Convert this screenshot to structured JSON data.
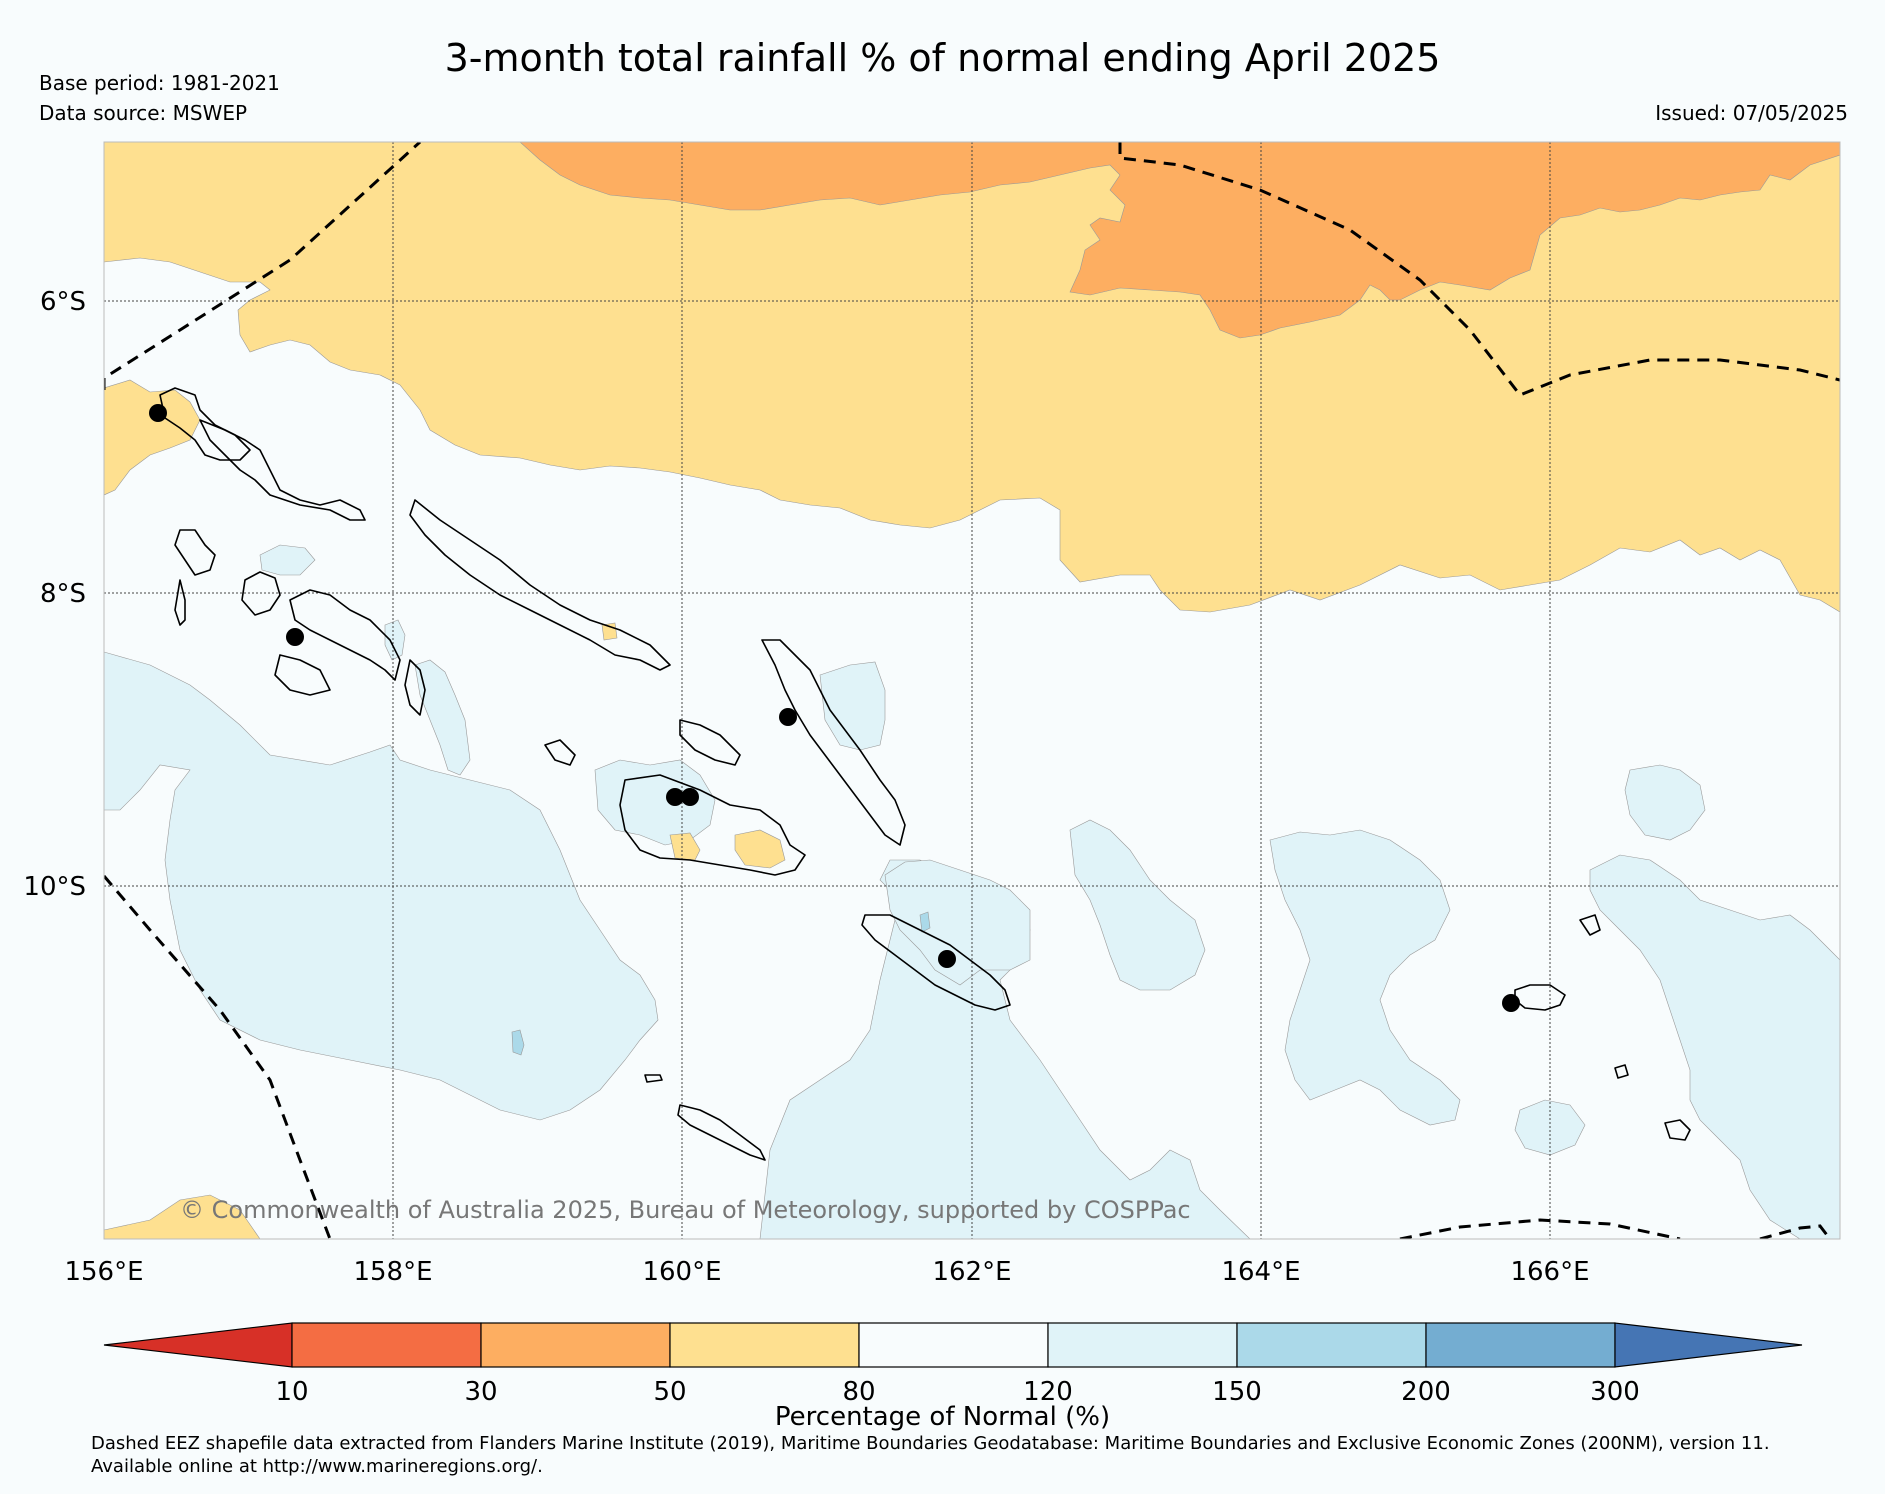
{
  "title": "3-month total rainfall % of normal ending April 2025",
  "base_period": "Base period: 1981-2021",
  "data_source": "Data source: MSWEP",
  "issued": "Issued: 07/05/2025",
  "latitude_labels": [
    "6°S",
    "8°S",
    "10°S"
  ],
  "longitude_labels": [
    "156°E",
    "158°E",
    "160°E",
    "162°E",
    "164°E",
    "166°E"
  ],
  "copyright": "© Commonwealth of Australia 2025, Bureau of Meteorology, supported by COSPPac",
  "colorbar": {
    "title": "Percentage of Normal (%)",
    "ticks": [
      "10",
      "30",
      "50",
      "80",
      "120",
      "150",
      "200",
      "300"
    ],
    "colors": [
      "#d73027",
      "#f46d43",
      "#fdae61",
      "#fee090",
      "#f8fcfd",
      "#e0f3f8",
      "#abd9e9",
      "#74add1",
      "#4575b4"
    ]
  },
  "map_colors": {
    "dry_30_50": "#fdae61",
    "dry_50_80": "#fee090",
    "normal": "#f8fcfd",
    "wet_120_150": "#e0f3f8",
    "wet_150_200": "#abd9e9"
  },
  "footnote": {
    "line1": "Dashed EEZ shapefile data extracted from Flanders Marine Institute (2019), Maritime Boundaries Geodatabase: Maritime Boundaries and Exclusive Economic Zones (200NM), version 11.",
    "line2": "Available online at http://www.marineregions.org/."
  }
}
